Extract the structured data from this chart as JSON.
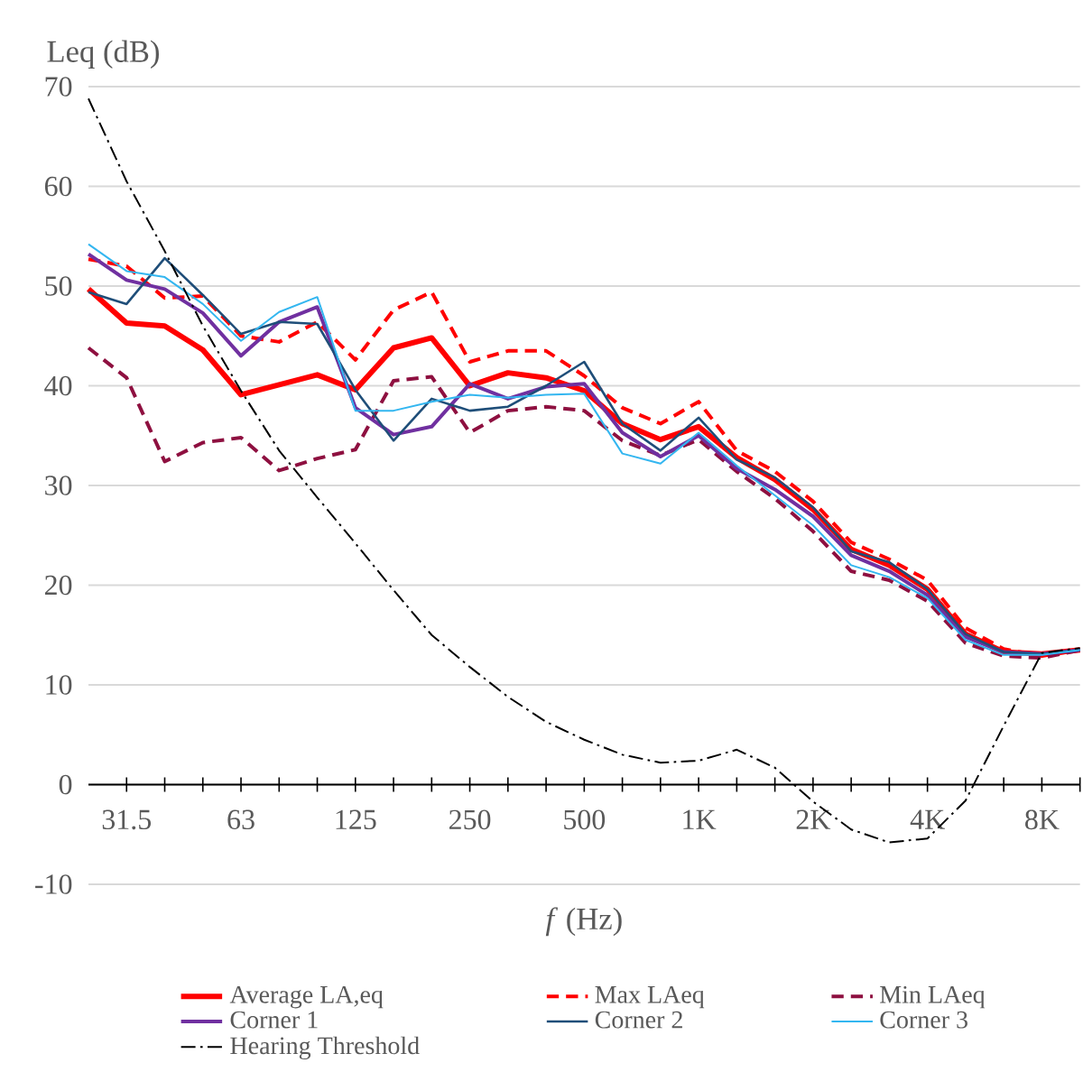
{
  "chart_data": {
    "type": "line",
    "xlabel": "*f* (Hz)",
    "ylabel": "Leq (dB)",
    "categories": [
      null,
      "31.5",
      null,
      null,
      "63",
      null,
      null,
      "125",
      null,
      null,
      "250",
      null,
      null,
      "500",
      null,
      null,
      "1K",
      null,
      null,
      "2K",
      null,
      null,
      "4K",
      null,
      null,
      "8K",
      null
    ],
    "ylim": [
      -10,
      70
    ],
    "yticks": [
      -10,
      0,
      10,
      20,
      30,
      40,
      50,
      60,
      70
    ],
    "grid": "y",
    "legend": "bottom",
    "marker": "none",
    "series": [
      {
        "name": "Average LA,eq",
        "color": "#ff0000",
        "line_style": "solid",
        "values": [
          49.7,
          46.3,
          46.0,
          43.6,
          39.1,
          40.1,
          41.1,
          39.6,
          43.8,
          44.8,
          40.0,
          41.3,
          40.8,
          39.5,
          36.2,
          34.6,
          35.9,
          32.8,
          30.6,
          27.6,
          23.6,
          22.0,
          19.6,
          15.1,
          13.3,
          13.1,
          13.5
        ]
      },
      {
        "name": "Max LAeq",
        "color": "#ff0000",
        "line_style": "dashed",
        "values": [
          52.7,
          52.0,
          48.8,
          49.0,
          45.0,
          44.4,
          46.4,
          42.6,
          47.6,
          49.4,
          42.4,
          43.5,
          43.5,
          41.0,
          37.8,
          36.2,
          38.4,
          33.5,
          31.4,
          28.4,
          24.3,
          22.6,
          20.5,
          15.7,
          13.6,
          12.9,
          13.5
        ]
      },
      {
        "name": "Min LAeq",
        "color": "#8e1040",
        "line_style": "dashed",
        "values": [
          43.8,
          40.8,
          32.4,
          34.3,
          34.8,
          31.5,
          32.7,
          33.6,
          40.5,
          40.9,
          35.3,
          37.5,
          37.9,
          37.5,
          34.5,
          33.0,
          34.6,
          31.4,
          28.7,
          25.4,
          21.4,
          20.5,
          18.4,
          14.2,
          12.9,
          12.7,
          13.5
        ]
      },
      {
        "name": "Corner 1",
        "color": "#7030a0",
        "line_style": "solid",
        "values": [
          53.2,
          50.6,
          49.7,
          47.3,
          43.0,
          46.4,
          47.9,
          37.8,
          35.1,
          35.9,
          40.2,
          38.7,
          39.9,
          40.2,
          35.3,
          32.9,
          35.0,
          31.7,
          29.6,
          26.9,
          23.0,
          21.4,
          19.0,
          14.8,
          13.3,
          13.1,
          13.5
        ]
      },
      {
        "name": "Corner 2",
        "color": "#1f4e79",
        "line_style": "solid",
        "values": [
          49.4,
          48.2,
          52.8,
          49.1,
          45.2,
          46.4,
          46.2,
          39.6,
          34.5,
          38.7,
          37.5,
          37.9,
          40.0,
          42.4,
          36.2,
          33.5,
          36.8,
          32.6,
          30.8,
          27.8,
          23.4,
          22.3,
          19.6,
          15.1,
          13.3,
          13.1,
          13.5
        ]
      },
      {
        "name": "Corner 3",
        "color": "#33b6f0",
        "line_style": "solid",
        "values": [
          54.2,
          51.5,
          50.9,
          48.2,
          44.5,
          47.4,
          48.9,
          37.5,
          37.5,
          38.4,
          39.1,
          38.8,
          39.1,
          39.2,
          33.2,
          32.2,
          35.3,
          32.0,
          29.0,
          26.0,
          22.0,
          20.8,
          18.7,
          14.5,
          13.0,
          13.0,
          13.5
        ]
      },
      {
        "name": "Hearing Threshold",
        "color": "#000000",
        "line_style": "dashdot",
        "values": [
          68.8,
          60.5,
          53.5,
          46.0,
          39.5,
          33.5,
          28.8,
          24.2,
          19.5,
          15.0,
          11.8,
          8.8,
          6.3,
          4.5,
          3.0,
          2.2,
          2.4,
          3.5,
          1.7,
          -1.7,
          -4.5,
          -5.8,
          -5.4,
          -1.6,
          5.9,
          13.2,
          13.7
        ]
      }
    ]
  }
}
